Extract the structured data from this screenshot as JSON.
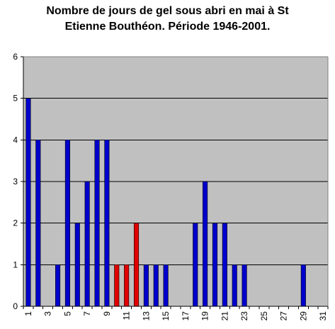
{
  "chart_data": {
    "type": "bar",
    "title_line1": "Nombre de jours de gel sous abri en mai à St",
    "title_line2": "Etienne Bouthéon. Période 1946-2001.",
    "xlabel": "",
    "ylabel": "",
    "ylim": [
      0,
      6
    ],
    "y_ticks": [
      0,
      1,
      2,
      3,
      4,
      5,
      6
    ],
    "grid": true,
    "legend": "none",
    "categories": [
      1,
      2,
      3,
      4,
      5,
      6,
      7,
      8,
      9,
      10,
      11,
      12,
      13,
      14,
      15,
      16,
      17,
      18,
      19,
      20,
      21,
      22,
      23,
      24,
      25,
      26,
      27,
      28,
      29,
      30,
      31
    ],
    "x_tick_labels": [
      "1",
      "3",
      "5",
      "7",
      "9",
      "11",
      "13",
      "15",
      "17",
      "19",
      "21",
      "23",
      "25",
      "27",
      "29",
      "31"
    ],
    "values": [
      5,
      4,
      0,
      1,
      4,
      2,
      3,
      4,
      4,
      1,
      1,
      2,
      1,
      1,
      1,
      0,
      0,
      2,
      3,
      2,
      2,
      1,
      1,
      0,
      0,
      0,
      0,
      0,
      1,
      0,
      0
    ],
    "highlighted_days": [
      10,
      11,
      12
    ],
    "colors": {
      "bar": "#0000cc",
      "bar_highlight": "#e00000",
      "plot_background": "#c0c0c0",
      "gridline": "#000000"
    }
  }
}
